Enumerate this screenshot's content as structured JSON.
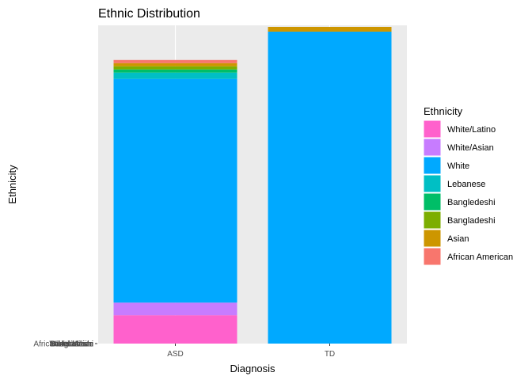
{
  "chart_data": {
    "type": "bar",
    "stacked": true,
    "title": "Ethnic Distribution",
    "xlabel": "Diagnosis",
    "ylabel": "Ethnicity",
    "categories": [
      "ASD",
      "TD"
    ],
    "ylim": [
      0,
      101
    ],
    "y_tick_labels": [
      "African American",
      "Asian",
      "Bangladeshi",
      "Bangledeshi",
      "Lebanese",
      "White",
      "White/Asian",
      "White/Latino"
    ],
    "legend_title": "Ethnicity",
    "legend_position": "right",
    "grid": true,
    "panel_background": "#ebebeb",
    "gridline_color": "#ffffff",
    "series": [
      {
        "name": "White/Latino",
        "color": "#FF61CC",
        "values": [
          9,
          0
        ]
      },
      {
        "name": "White/Asian",
        "color": "#C77CFF",
        "values": [
          4,
          0
        ]
      },
      {
        "name": "White",
        "color": "#00A9FF",
        "values": [
          71,
          99
        ]
      },
      {
        "name": "Lebanese",
        "color": "#00BFC4",
        "values": [
          2,
          0
        ]
      },
      {
        "name": "Bangledeshi",
        "color": "#00BE67",
        "values": [
          1,
          0
        ]
      },
      {
        "name": "Bangladeshi",
        "color": "#7CAE00",
        "values": [
          1,
          0
        ]
      },
      {
        "name": "Asian",
        "color": "#CD9600",
        "values": [
          1,
          1.5
        ]
      },
      {
        "name": "African American",
        "color": "#F8766D",
        "values": [
          1,
          0
        ]
      }
    ]
  }
}
